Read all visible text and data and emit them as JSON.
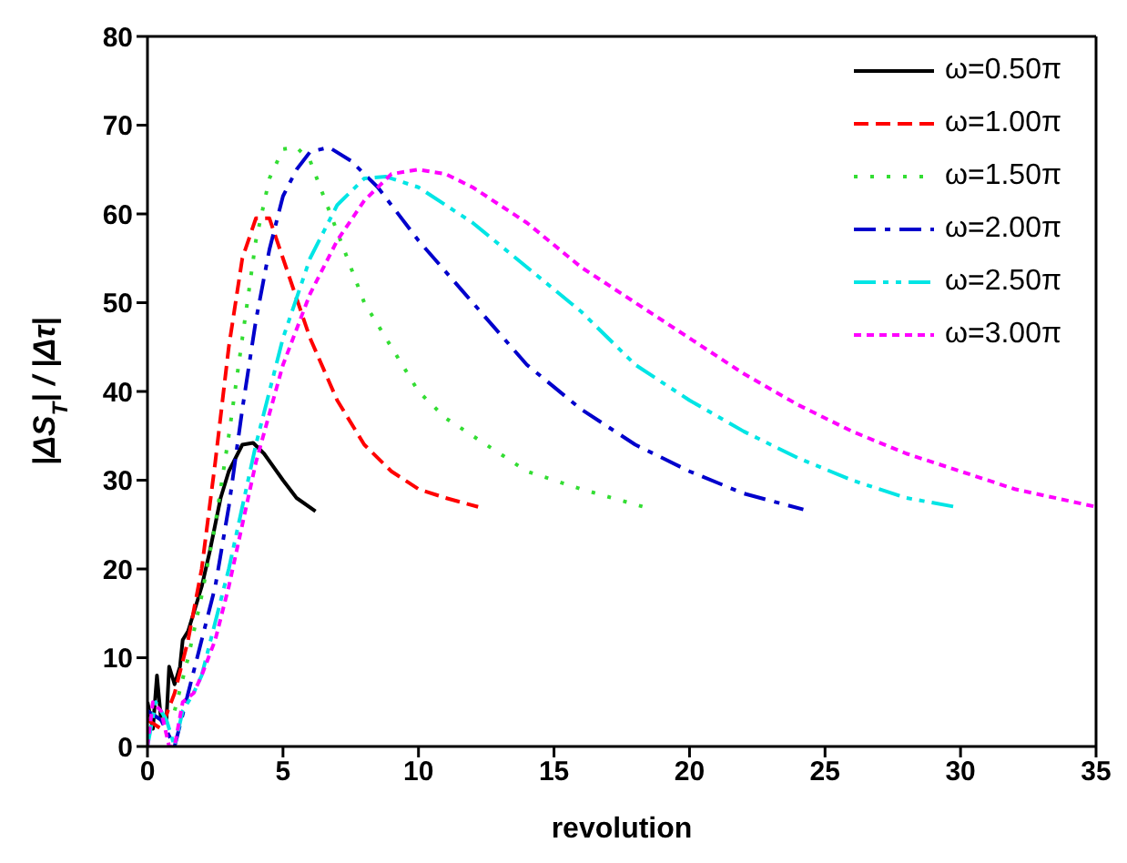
{
  "chart_data": {
    "type": "line",
    "xlabel": "revolution",
    "ylabel": "|ΔS$_{T}$| / |Δτ|",
    "xlim": [
      0,
      35
    ],
    "xticks": [
      0,
      5,
      10,
      15,
      20,
      25,
      30,
      35
    ],
    "ylim": [
      0,
      80
    ],
    "yticks": [
      0,
      10,
      20,
      30,
      40,
      50,
      60,
      70,
      80
    ],
    "legend": "top right",
    "marker": "none",
    "series": [
      {
        "name": "ω=0.50π",
        "color": "#000000",
        "line_style": "solid",
        "x": [
          0,
          0.2,
          0.35,
          0.5,
          0.7,
          0.8,
          1.0,
          1.2,
          1.3,
          1.5,
          1.7,
          2.0,
          2.3,
          2.7,
          3.0,
          3.5,
          3.9,
          4.3,
          5,
          5.5,
          6.2
        ],
        "values": [
          5,
          2,
          8,
          3,
          3,
          9,
          7,
          9,
          12,
          13,
          15,
          18,
          22,
          28,
          31,
          34,
          34.2,
          33,
          30,
          28,
          26.5
        ]
      },
      {
        "name": "ω=1.00π",
        "color": "#ff0000",
        "line_style": "dashed",
        "x": [
          0,
          0.5,
          1,
          1.5,
          2,
          2.5,
          3,
          3.5,
          4,
          4.5,
          5,
          6,
          7,
          8,
          9,
          10,
          11,
          12.2
        ],
        "values": [
          3,
          2,
          6,
          12,
          20,
          32,
          45,
          55,
          59.5,
          59.5,
          55,
          46,
          39,
          34,
          31,
          29,
          28,
          27
        ]
      },
      {
        "name": "ω=1.50π",
        "color": "#33dd33",
        "line_style": "dotted",
        "x": [
          0,
          0.5,
          1,
          1.5,
          2,
          2.5,
          3,
          3.5,
          4,
          4.5,
          5,
          5.5,
          6,
          7,
          8,
          9,
          10,
          11,
          12,
          14,
          16,
          18.3
        ],
        "values": [
          4,
          3,
          4,
          10,
          17,
          25,
          35,
          46,
          57,
          64,
          67.3,
          67.5,
          66,
          58,
          50,
          45,
          40,
          37,
          35,
          31,
          29,
          27
        ]
      },
      {
        "name": "ω=2.00π",
        "color": "#0000cc",
        "line_style": "dashdot",
        "x": [
          0,
          0.5,
          1,
          1.5,
          2,
          2.5,
          3,
          3.5,
          4,
          4.5,
          5,
          5.5,
          6,
          6.7,
          7.5,
          8.5,
          10,
          12,
          14,
          16,
          18,
          20,
          22,
          24.2
        ],
        "values": [
          4,
          3,
          0,
          6,
          12,
          18,
          27,
          38,
          48,
          56,
          62,
          65,
          67,
          67.5,
          66,
          63,
          57,
          50,
          43,
          38,
          34,
          31,
          28.5,
          26.7
        ]
      },
      {
        "name": "ω=2.50π",
        "color": "#00e5e5",
        "line_style": "dashdotdot",
        "x": [
          0,
          0.3,
          0.7,
          1,
          1.3,
          1.7,
          2,
          2.5,
          3,
          3.5,
          4,
          5,
          6,
          7,
          8,
          8.8,
          10,
          12,
          14,
          16,
          18,
          20,
          22,
          24,
          26,
          28,
          29.8
        ],
        "values": [
          0,
          5,
          3,
          0,
          4,
          6,
          8,
          14,
          20,
          27,
          34,
          46,
          55,
          61,
          64,
          64.2,
          63,
          59,
          54,
          49,
          43,
          39,
          35.5,
          32.5,
          30,
          28,
          27
        ]
      },
      {
        "name": "ω=3.00π",
        "color": "#ff00ff",
        "line_style": "shortdash",
        "x": [
          0,
          0.2,
          0.5,
          0.8,
          1,
          1.3,
          1.7,
          2,
          2.5,
          3,
          3.5,
          4,
          5,
          6,
          7,
          8,
          9,
          10,
          11,
          12,
          14,
          16,
          18,
          20,
          22,
          24,
          26,
          28,
          30,
          32,
          35
        ],
        "values": [
          0,
          5,
          4,
          0,
          0,
          5,
          6,
          8,
          12,
          18,
          25,
          32,
          43,
          51,
          57,
          61.5,
          64.5,
          65,
          64.5,
          63,
          59,
          54,
          50,
          46,
          42,
          38.5,
          35.5,
          33,
          31,
          29,
          27
        ]
      }
    ]
  }
}
